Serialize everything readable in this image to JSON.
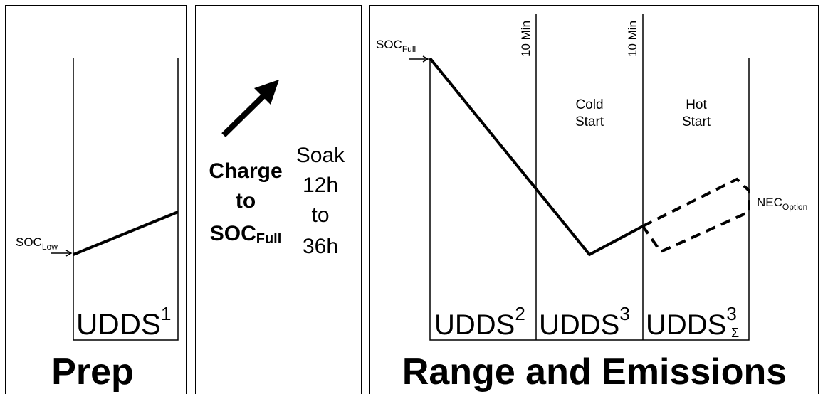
{
  "prep": {
    "title": "Prep",
    "soc": {
      "text": "SOC",
      "sub": "Low"
    },
    "cycle": {
      "text": "UDDS",
      "sup": "1"
    }
  },
  "charge": {
    "label_lines": [
      "Charge",
      "to"
    ],
    "soc": {
      "text": "SOC",
      "sub": "Full"
    },
    "soak_lines": [
      "Soak",
      "12h",
      "to",
      "36h"
    ]
  },
  "range": {
    "title": "Range and Emissions",
    "soc": {
      "text": "SOC",
      "sub": "Full"
    },
    "markers": [
      "10 Min",
      "10 Min"
    ],
    "phases": [
      {
        "lines": [
          "Cold",
          "Start"
        ]
      },
      {
        "lines": [
          "Hot",
          "Start"
        ]
      }
    ],
    "nec": {
      "text": "NEC",
      "sub": "Option"
    },
    "cycles": [
      {
        "text": "UDDS",
        "sup": "2"
      },
      {
        "text": "UDDS",
        "sup": "3"
      },
      {
        "text": "UDDS",
        "sup": "3",
        "sub": "Σ"
      }
    ]
  }
}
